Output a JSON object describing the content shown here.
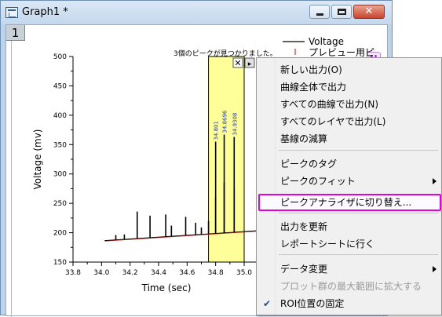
{
  "window": {
    "title": "Graph1 *",
    "layer_index": "1",
    "h_badge": "H",
    "close_glyph": "✕"
  },
  "graph": {
    "status_text": "3個のピークが見つかりました。",
    "legend": {
      "line_label": "Voltage",
      "marker_label": "プレビュー用ピ"
    },
    "roi_close_glyph": "✕",
    "roi_menu_glyph": "▸"
  },
  "chart_data": {
    "type": "line",
    "xlabel": "Time (sec)",
    "ylabel": "Voltage (mv)",
    "xlim": [
      33.8,
      35.0
    ],
    "ylim": [
      150,
      500
    ],
    "x_ticks": [
      "33.8",
      "34.0",
      "34.2",
      "34.4",
      "34.6",
      "34.8",
      "35.0"
    ],
    "y_ticks": [
      "150",
      "200",
      "250",
      "300",
      "350",
      "400",
      "450",
      "500"
    ],
    "baseline": {
      "x": [
        34.0,
        35.1
      ],
      "y": [
        186,
        203
      ]
    },
    "spikes": [
      {
        "x": 34.1,
        "y": 196
      },
      {
        "x": 34.16,
        "y": 197
      },
      {
        "x": 34.25,
        "y": 236
      },
      {
        "x": 34.34,
        "y": 229
      },
      {
        "x": 34.45,
        "y": 231
      },
      {
        "x": 34.49,
        "y": 212
      },
      {
        "x": 34.59,
        "y": 227
      },
      {
        "x": 34.66,
        "y": 217
      },
      {
        "x": 34.7,
        "y": 209
      },
      {
        "x": 34.75,
        "y": 220
      },
      {
        "x": 34.8,
        "y": 260
      },
      {
        "x": 34.86,
        "y": 285
      },
      {
        "x": 34.93,
        "y": 275
      }
    ],
    "peaks": [
      {
        "x": 34.8,
        "y": 355,
        "label": "34.801"
      },
      {
        "x": 34.86,
        "y": 367,
        "label": "34.8696"
      },
      {
        "x": 34.93,
        "y": 363,
        "label": "34.9308"
      }
    ],
    "roi": {
      "x_start": 34.75,
      "x_end": 35.0
    },
    "colors": {
      "signal": "#000000",
      "baseline": "#c0392b",
      "peak_label": "#1f3bb3",
      "roi_fill": "#ffff99"
    }
  },
  "context_menu": {
    "items": [
      {
        "label": "新しい出力(O)",
        "enabled": true
      },
      {
        "label": "曲線全体で出力",
        "enabled": true
      },
      {
        "label": "すべての曲線で出力(N)",
        "enabled": true
      },
      {
        "label": "すべてのレイヤで出力(L)",
        "enabled": true
      },
      {
        "label": "基線の減算",
        "enabled": true
      },
      {
        "label": "ピークのタグ",
        "enabled": true
      },
      {
        "label": "ピークのフィット",
        "enabled": true,
        "submenu": true
      },
      {
        "label": "ピークアナライザに切り替え...",
        "enabled": true,
        "highlighted": true
      },
      {
        "label": "出力を更新",
        "enabled": true
      },
      {
        "label": "レポートシートに行く",
        "enabled": true
      },
      {
        "label": "データ変更",
        "enabled": true,
        "submenu": true
      },
      {
        "label": "プロット群の最大範囲に拡大する",
        "enabled": false
      },
      {
        "label": "ROI位置の固定",
        "enabled": true,
        "checked": true
      }
    ],
    "check_glyph": "✔"
  }
}
